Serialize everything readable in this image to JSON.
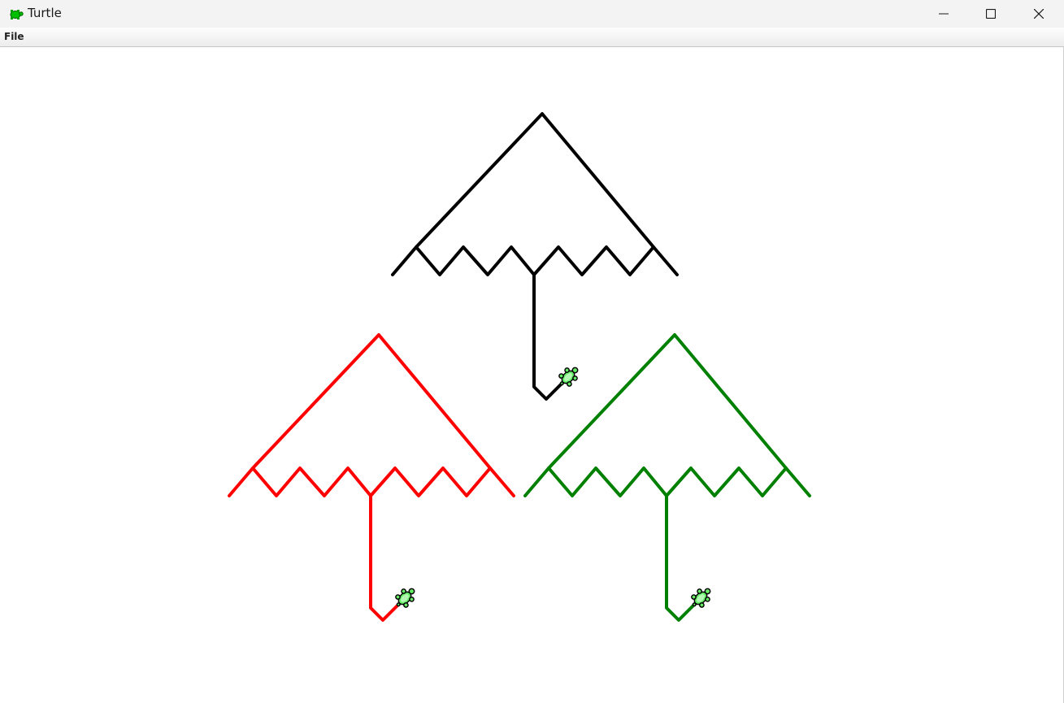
{
  "window": {
    "title": "Turtle",
    "icon": "turtle-icon",
    "controls": [
      "minimize-icon",
      "maximize-icon",
      "close-icon"
    ]
  },
  "menubar": {
    "items": [
      {
        "label": "File"
      }
    ]
  },
  "canvas": {
    "background": "#ffffff",
    "umbrellas": [
      {
        "name": "umbrella-black",
        "color": "#000000"
      },
      {
        "name": "umbrella-red",
        "color": "#ff0000"
      },
      {
        "name": "umbrella-green",
        "color": "#008000"
      }
    ],
    "turtle_fill": "#66ee66",
    "turtle_outline": "#000000"
  }
}
